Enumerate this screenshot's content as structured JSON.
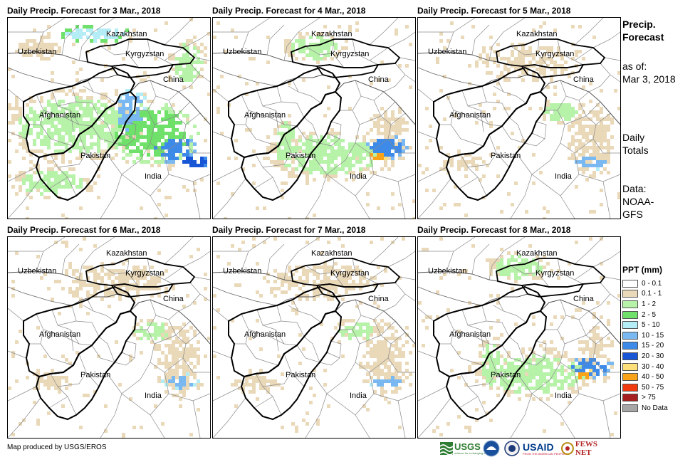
{
  "panels": [
    {
      "title": "Daily Precip. Forecast for 3 Mar., 2018",
      "intensity": 3
    },
    {
      "title": "Daily Precip. Forecast for 4 Mar., 2018",
      "intensity": 2
    },
    {
      "title": "Daily Precip. Forecast for 5 Mar., 2018",
      "intensity": 1
    },
    {
      "title": "Daily Precip. Forecast for 6 Mar., 2018",
      "intensity": 1
    },
    {
      "title": "Daily Precip. Forecast for 7 Mar., 2018",
      "intensity": 1
    },
    {
      "title": "Daily Precip. Forecast for 8 Mar., 2018",
      "intensity": 2
    }
  ],
  "labels": {
    "kazakhstan": "Kazakhstan",
    "uzbekistan": "Uzbekistan",
    "kyrgyzstan": "Kyrgyzstan",
    "china": "China",
    "afghanistan": "Afghanistan",
    "pakistan": "Pakistan",
    "india": "India"
  },
  "side": {
    "title_line1": "Precip.",
    "title_line2": "Forecast",
    "asof_line1": "as of:",
    "asof_line2": "Mar 3, 2018",
    "daily_line1": "Daily",
    "daily_line2": "Totals",
    "data_line1": "Data:",
    "data_line2": "NOAA-",
    "data_line3": "GFS"
  },
  "legend": {
    "title": "PPT (mm)",
    "items": [
      {
        "label": "0 - 0.1",
        "color": "#ffffff"
      },
      {
        "label": "0.1 - 1",
        "color": "#ead9b9"
      },
      {
        "label": "1 - 2",
        "color": "#b7f2a9"
      },
      {
        "label": "2 - 5",
        "color": "#6fe06a"
      },
      {
        "label": "5 - 10",
        "color": "#b4edf5"
      },
      {
        "label": "10 - 15",
        "color": "#79b8f0"
      },
      {
        "label": "15 - 20",
        "color": "#3d8ae8"
      },
      {
        "label": "20 - 30",
        "color": "#1856d6"
      },
      {
        "label": "30 - 40",
        "color": "#fde07a"
      },
      {
        "label": "40 - 50",
        "color": "#f9a31b"
      },
      {
        "label": "50 - 75",
        "color": "#f23a0f"
      },
      {
        "label": "> 75",
        "color": "#a5201e"
      },
      {
        "label": "No Data",
        "color": "#a6a6a6"
      }
    ]
  },
  "credit": "Map produced by USGS/EROS",
  "logos": {
    "usgs": "USGS",
    "usgs_tag": "science for a changing world",
    "usaid": "USAID",
    "usaid_tag": "FROM THE AMERICAN PEOPLE",
    "fewsnet": "FEWS NET"
  },
  "colors": {
    "usgs_green": "#2e7d32",
    "usaid_blue": "#003b8a",
    "usaid_red": "#c8102e",
    "fews_red": "#b22222"
  }
}
